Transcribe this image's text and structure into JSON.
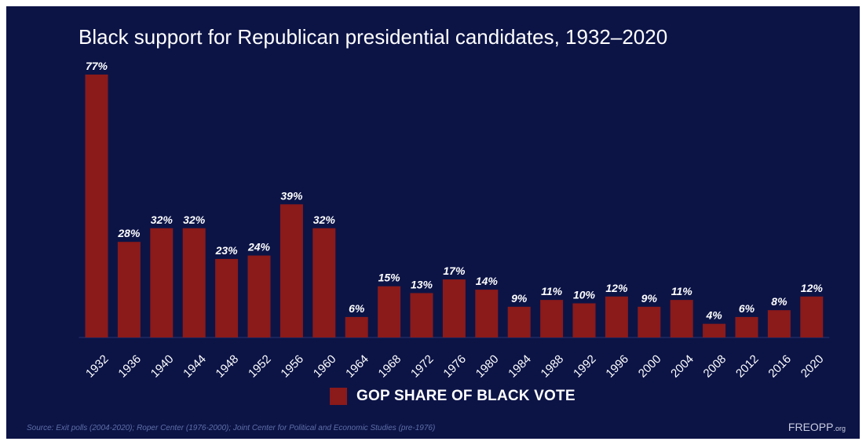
{
  "chart_data": {
    "type": "bar",
    "title": "Black support for Republican presidential candidates, 1932–2020",
    "categories": [
      "1932",
      "1936",
      "1940",
      "1944",
      "1948",
      "1952",
      "1956",
      "1960",
      "1964",
      "1968",
      "1972",
      "1976",
      "1980",
      "1984",
      "1988",
      "1992",
      "1996",
      "2000",
      "2004",
      "2008",
      "2012",
      "2016",
      "2020"
    ],
    "series": [
      {
        "name": "GOP SHARE OF BLACK VOTE",
        "values": [
          77,
          28,
          32,
          32,
          23,
          24,
          39,
          32,
          6,
          15,
          13,
          17,
          14,
          9,
          11,
          10,
          12,
          9,
          11,
          4,
          6,
          8,
          12
        ]
      }
    ],
    "value_suffix": "%",
    "ylim": [
      0,
      80
    ],
    "xlabel": "",
    "ylabel": "",
    "grid": false,
    "legend_position": "bottom",
    "colors": {
      "background": "#0c1446",
      "bar": "#8b1a1a",
      "text": "#ffffff"
    }
  },
  "source": "Source: Exit polls (2004-2020); Roper Center (1976-2000); Joint Center for Political and Economic Studies (pre-1976)",
  "logo": {
    "main": "FREOPP",
    "tld": ".org"
  }
}
